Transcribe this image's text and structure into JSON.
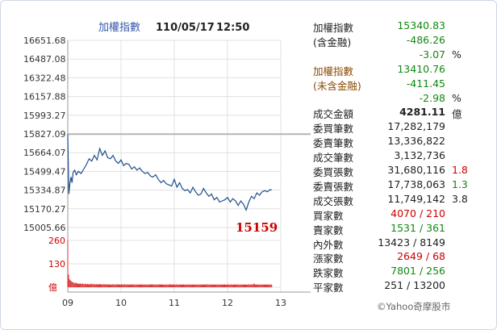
{
  "chart_data": {
    "type": "line",
    "title": "加權指數",
    "date": "110/05/17",
    "time": "12:50",
    "y_ticks": [
      "16651.68",
      "16487.08",
      "16322.48",
      "16157.88",
      "15993.27",
      "15827.09",
      "15664.07",
      "15499.47",
      "15334.87",
      "15170.27",
      "15005.66"
    ],
    "ylim": [
      15005.66,
      16651.68
    ],
    "reference": 15827.09,
    "x_ticks": [
      "09",
      "10",
      "11",
      "12",
      "13"
    ],
    "low_label": "15159",
    "series": [
      {
        "x": [
          9.0,
          9.02,
          9.04,
          9.06,
          9.08,
          9.1,
          9.13,
          9.16,
          9.2,
          9.25,
          9.3,
          9.35,
          9.4,
          9.45,
          9.5,
          9.55,
          9.6,
          9.65,
          9.7,
          9.75,
          9.8,
          9.85,
          9.9,
          9.95,
          10.0,
          10.05,
          10.1,
          10.15,
          10.2,
          10.25,
          10.3,
          10.35,
          10.4,
          10.45,
          10.5,
          10.55,
          10.6,
          10.65,
          10.7,
          10.75,
          10.8,
          10.85,
          10.9,
          10.95,
          11.0,
          11.05,
          11.1,
          11.15,
          11.2,
          11.25,
          11.3,
          11.35,
          11.4,
          11.45,
          11.5,
          11.55,
          11.6,
          11.65,
          11.7,
          11.75,
          11.8,
          11.85,
          11.9,
          11.95,
          12.0,
          12.05,
          12.1,
          12.15,
          12.2,
          12.25,
          12.3,
          12.35,
          12.4,
          12.45,
          12.5,
          12.55,
          12.6,
          12.65,
          12.7,
          12.75,
          12.8,
          12.83
        ],
        "y": [
          15827,
          15300,
          15390,
          15450,
          15400,
          15490,
          15510,
          15470,
          15500,
          15480,
          15520,
          15560,
          15610,
          15590,
          15640,
          15600,
          15700,
          15640,
          15680,
          15620,
          15610,
          15640,
          15590,
          15570,
          15600,
          15550,
          15570,
          15560,
          15520,
          15540,
          15510,
          15530,
          15500,
          15480,
          15490,
          15460,
          15450,
          15470,
          15430,
          15400,
          15420,
          15390,
          15380,
          15370,
          15430,
          15360,
          15400,
          15350,
          15330,
          15340,
          15310,
          15360,
          15320,
          15290,
          15300,
          15350,
          15310,
          15280,
          15300,
          15250,
          15270,
          15230,
          15240,
          15250,
          15270,
          15230,
          15260,
          15240,
          15200,
          15240,
          15210,
          15159,
          15230,
          15280,
          15260,
          15310,
          15290,
          15320,
          15330,
          15320,
          15340,
          15335
        ]
      }
    ],
    "volume": {
      "ticks": [
        "260",
        "130",
        "億"
      ],
      "ylim": [
        0,
        260
      ],
      "values": [
        260,
        70,
        45,
        38,
        35,
        30,
        28,
        26,
        22,
        25,
        24,
        20,
        22,
        18,
        20,
        21,
        19,
        18,
        22,
        17,
        16,
        20,
        18,
        17,
        19,
        16,
        15,
        18,
        20,
        17,
        16,
        19,
        15,
        17,
        18,
        16,
        15,
        17,
        16,
        18,
        15,
        16,
        17,
        15,
        16,
        18,
        14,
        16,
        15,
        17,
        14,
        15,
        16,
        14,
        18,
        15,
        14,
        16,
        15,
        17,
        14,
        16,
        15,
        13,
        18,
        14,
        16,
        15,
        17,
        14,
        15,
        16,
        14,
        15,
        16,
        14,
        15,
        17,
        14,
        16,
        15,
        14,
        16,
        15,
        14,
        15,
        16,
        14,
        15,
        16,
        14,
        15,
        14,
        16,
        15,
        14,
        15,
        16,
        14,
        15,
        17,
        16,
        14,
        15,
        16,
        14,
        15,
        14,
        16,
        15,
        17,
        14,
        15,
        16,
        14,
        15,
        14,
        16,
        15,
        14,
        15,
        16,
        17,
        14,
        15,
        14,
        16,
        15,
        14,
        15,
        16,
        14,
        15,
        14,
        16,
        15,
        14,
        15,
        16,
        14,
        15,
        14,
        16,
        15,
        14,
        15,
        16,
        14,
        15,
        14,
        16,
        15,
        14,
        15,
        16,
        14,
        15,
        14,
        16,
        15,
        14,
        15,
        16,
        14,
        15,
        17,
        14,
        16,
        15,
        14,
        15,
        16,
        14,
        15,
        14,
        16,
        15,
        14,
        15,
        16,
        14,
        15,
        14,
        16,
        15,
        14,
        15,
        16,
        14,
        15,
        14,
        16,
        15,
        14,
        15,
        16,
        14,
        15,
        14,
        16,
        15,
        14,
        15,
        16,
        14,
        15,
        14,
        16,
        15,
        14,
        15,
        16,
        14,
        15,
        14,
        16,
        15,
        14,
        15,
        16,
        14,
        18,
        20,
        16,
        14,
        15,
        16,
        14,
        15,
        14,
        16,
        15,
        14,
        15,
        16,
        14,
        15,
        14,
        16,
        15,
        14,
        15,
        16,
        14
      ]
    },
    "grid": true
  },
  "panel": [
    {
      "label": "加權指數",
      "value": "15340.83",
      "value_color": "green"
    },
    {
      "label": "(含金融)",
      "value": "-486.26",
      "value_color": "green"
    },
    {
      "label": "",
      "value": "-3.07",
      "value_color": "green",
      "extra": "%",
      "extra_color": "black"
    },
    {
      "label": "加權指數",
      "value": "13410.76",
      "value_color": "green",
      "label_color": "brown"
    },
    {
      "label": "(未含金融)",
      "value": "-411.45",
      "value_color": "green",
      "label_color": "brown"
    },
    {
      "label": "",
      "value": "-2.98",
      "value_color": "green",
      "extra": "%",
      "extra_color": "black"
    },
    {
      "label": "成交金額",
      "value": "4281.11",
      "value_color": "black",
      "value_bold": true,
      "extra": "億",
      "extra_color": "black"
    },
    {
      "label": "委買筆數",
      "value": "17,282,179",
      "value_color": "black"
    },
    {
      "label": "委賣筆數",
      "value": "13,336,822",
      "value_color": "black"
    },
    {
      "label": "成交筆數",
      "value": "3,132,736",
      "value_color": "black"
    },
    {
      "label": "委買張數",
      "value": "31,680,116",
      "value_color": "black",
      "extra": "1.8",
      "extra_color": "red"
    },
    {
      "label": "委賣張數",
      "value": "17,738,063",
      "value_color": "black",
      "extra": "1.3",
      "extra_color": "green"
    },
    {
      "label": "成交張數",
      "value": "11,749,142",
      "value_color": "black",
      "extra": "3.8",
      "extra_color": "black"
    },
    {
      "label": "買家數",
      "value": "4070 / 210",
      "value_color": "red"
    },
    {
      "label": "賣家數",
      "value": "1531 / 361",
      "value_color": "green"
    },
    {
      "label": "內外數",
      "value": "13423 / 8149",
      "value_color": "black"
    },
    {
      "label": "漲家數",
      "value": "2649 / 68",
      "value_color": "red"
    },
    {
      "label": "跌家數",
      "value": "7801 / 256",
      "value_color": "green"
    },
    {
      "label": "平家數",
      "value": "251 / 13200",
      "value_color": "black"
    }
  ],
  "credit": "©Yahoo奇摩股市"
}
